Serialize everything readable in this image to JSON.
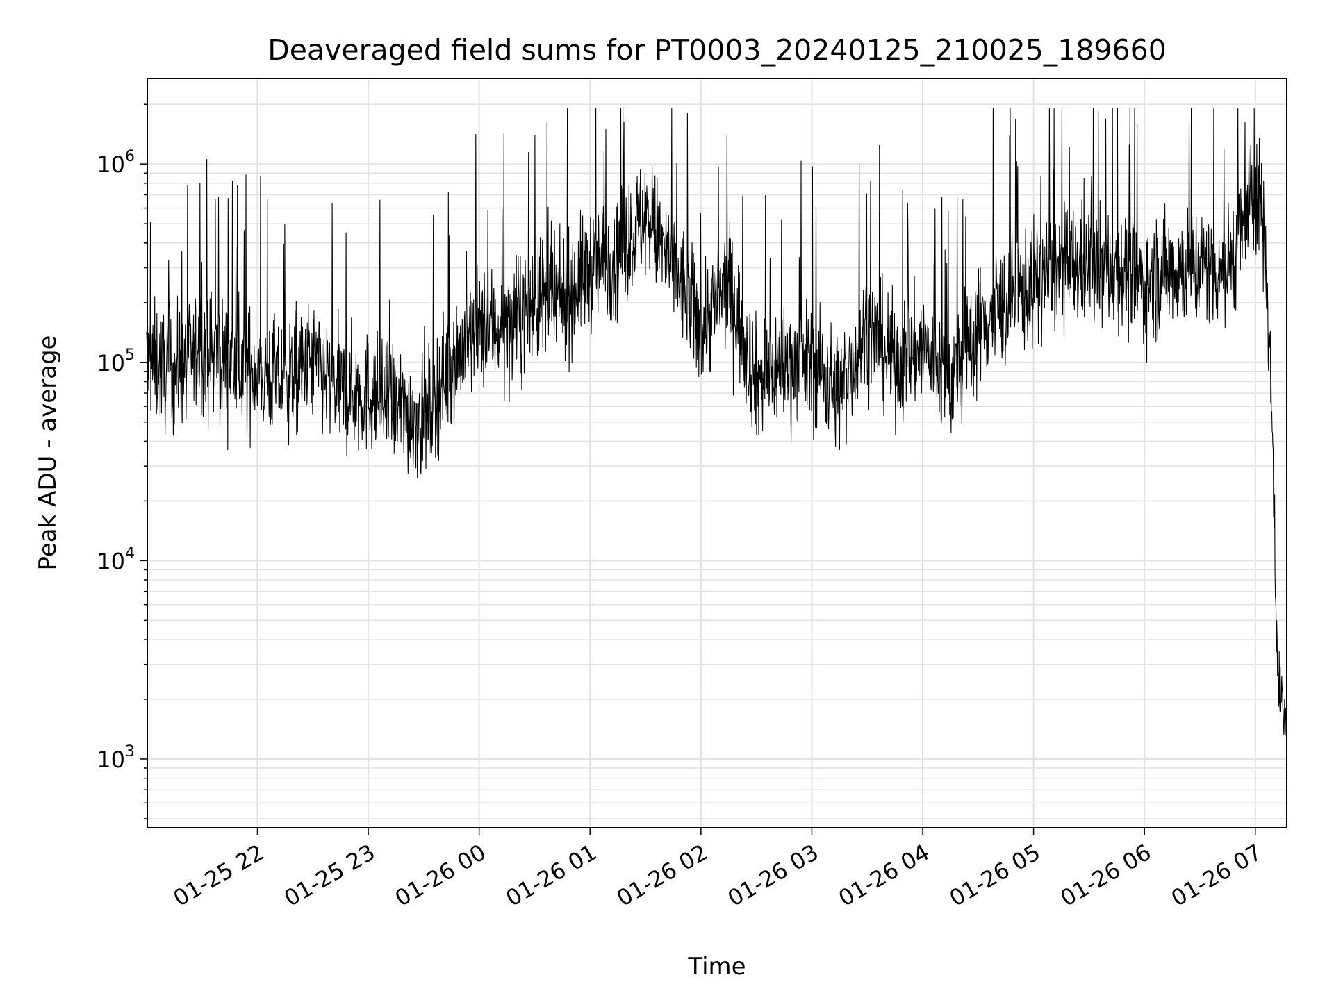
{
  "chart_data": {
    "type": "line",
    "title": "Deaveraged field sums for PT0003_20240125_210025_189660",
    "xlabel": "Time",
    "ylabel": "Peak ADU - average",
    "y_scale": "log",
    "ylim": [
      450,
      2700000
    ],
    "xlim": [
      "01-25 21:00:25",
      "01-26 07:17"
    ],
    "grid": true,
    "line_color": "#000000",
    "x_ticks": [
      "01-25 22",
      "01-25 23",
      "01-26 00",
      "01-26 01",
      "01-26 02",
      "01-26 03",
      "01-26 04",
      "01-26 05",
      "01-26 06",
      "01-26 07"
    ],
    "y_ticks": [
      {
        "value": 1000,
        "base": "10",
        "exp": "3"
      },
      {
        "value": 10000,
        "base": "10",
        "exp": "4"
      },
      {
        "value": 100000,
        "base": "10",
        "exp": "5"
      },
      {
        "value": 1000000,
        "base": "10",
        "exp": "6"
      }
    ],
    "series": [
      {
        "x": [
          "01-25 21:00",
          "01-25 21:15",
          "01-25 21:30",
          "01-25 21:45",
          "01-25 22:00",
          "01-25 22:15",
          "01-25 22:30",
          "01-25 22:45",
          "01-25 23:00",
          "01-25 23:15",
          "01-25 23:30",
          "01-25 23:45",
          "01-26 00:00",
          "01-26 00:15",
          "01-26 00:30",
          "01-26 00:45",
          "01-26 01:00",
          "01-26 01:15",
          "01-26 01:30",
          "01-26 01:45",
          "01-26 02:00",
          "01-26 02:15",
          "01-26 02:30",
          "01-26 02:45",
          "01-26 03:00",
          "01-26 03:15",
          "01-26 03:30",
          "01-26 03:45",
          "01-26 04:00",
          "01-26 04:15",
          "01-26 04:30",
          "01-26 04:45",
          "01-26 05:00",
          "01-26 05:15",
          "01-26 05:30",
          "01-26 05:45",
          "01-26 06:00",
          "01-26 06:15",
          "01-26 06:30",
          "01-26 06:45",
          "01-26 07:00",
          "01-26 07:03",
          "01-26 07:06",
          "01-26 07:09",
          "01-26 07:12",
          "01-26 07:15",
          "01-26 07:17"
        ],
        "y": [
          100000,
          90000,
          120000,
          100000,
          90000,
          80000,
          100000,
          70000,
          70000,
          60000,
          50000,
          100000,
          150000,
          150000,
          200000,
          200000,
          300000,
          350000,
          550000,
          300000,
          150000,
          250000,
          80000,
          100000,
          100000,
          70000,
          150000,
          100000,
          120000,
          80000,
          150000,
          200000,
          250000,
          300000,
          300000,
          300000,
          250000,
          300000,
          300000,
          300000,
          700000,
          700000,
          300000,
          60000,
          2500,
          2000,
          1500
        ]
      }
    ]
  }
}
